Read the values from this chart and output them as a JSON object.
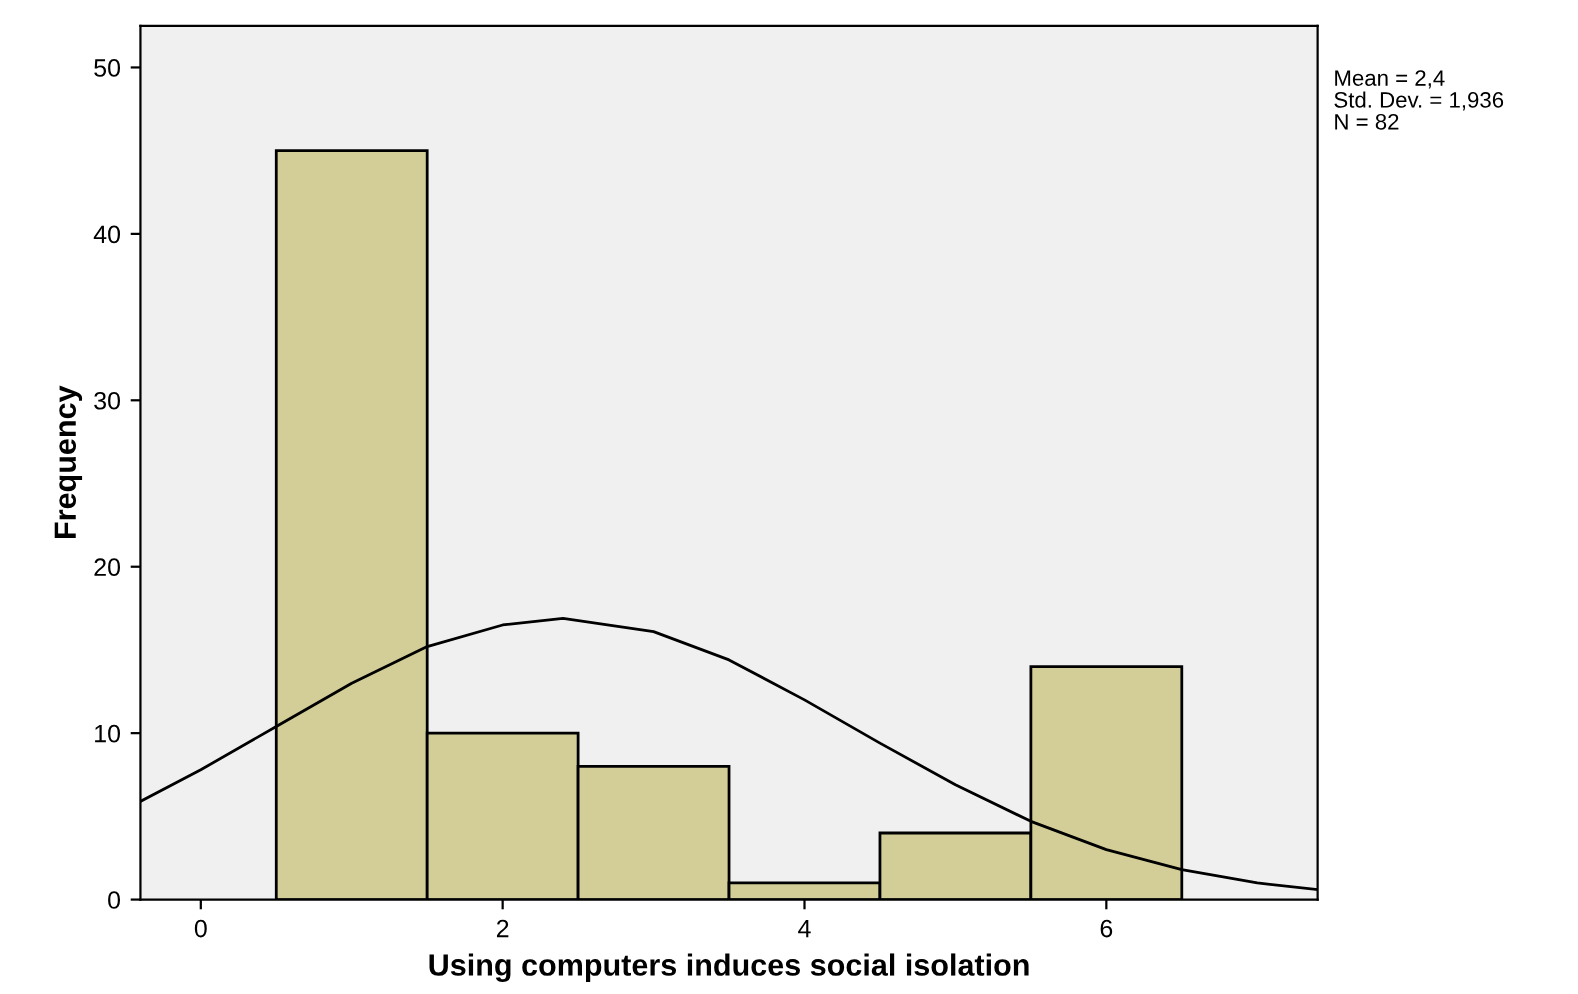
{
  "chart_data": {
    "type": "histogram",
    "xlabel": "Using computers induces social isolation",
    "ylabel": "Frequency",
    "bins": [
      0.5,
      1.5,
      2.5,
      3.5,
      4.5,
      5.5,
      6.5
    ],
    "values": [
      45,
      10,
      8,
      1,
      4,
      14
    ],
    "color": "#d3ce97",
    "series": [
      {
        "type": "line",
        "color": "#000000",
        "x": [
          -0.4,
          0,
          0.5,
          1,
          1.5,
          2,
          2.4,
          3,
          3.5,
          4,
          4.5,
          5,
          5.5,
          6,
          6.5,
          7,
          7.4
        ],
        "values": [
          5.9,
          7.8,
          10.4,
          13.0,
          15.2,
          16.5,
          16.9,
          16.1,
          14.4,
          12.0,
          9.4,
          6.9,
          4.7,
          3.0,
          1.8,
          1.0,
          0.6
        ]
      }
    ],
    "xlim": [
      -0.4,
      7.4
    ],
    "xticks": [
      0,
      2,
      4,
      6
    ],
    "ylim": [
      0,
      52.5
    ],
    "yticks": [
      0,
      10,
      20,
      30,
      40,
      50
    ],
    "grid": false,
    "annotations": [
      "Mean = 2,4",
      "Std. Dev. = 1,936",
      "N = 82"
    ]
  }
}
